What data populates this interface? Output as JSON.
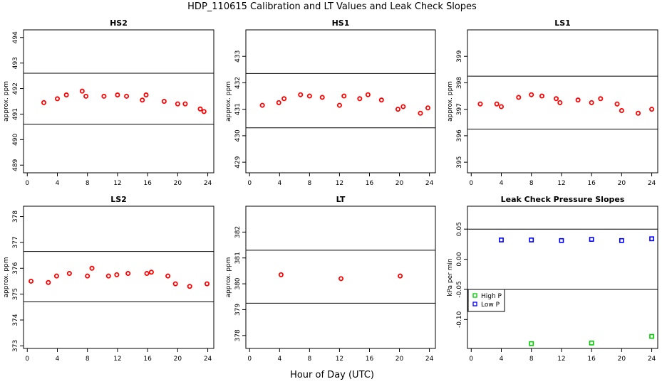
{
  "figure": {
    "title": "HDP_110615  Calibration and LT Values and Leak Check Slopes",
    "xlabel": "Hour of Day (UTC)"
  },
  "colors": {
    "cal_points": "#ff0000",
    "high_p": "#00cc00",
    "low_p": "#0000ff",
    "lines": "#000000"
  },
  "chart_data": [
    {
      "type": "scatter",
      "title": "HS2",
      "ylabel": "approx. ppm",
      "xlim": [
        -0.5,
        24.8
      ],
      "ylim": [
        488.7,
        494.3
      ],
      "xticks": [
        0,
        4,
        8,
        12,
        16,
        20,
        24
      ],
      "yticks": [
        489,
        490,
        491,
        492,
        493,
        494
      ],
      "hlines": [
        492.6,
        490.6
      ],
      "series": [
        {
          "color": "#ff0000",
          "x": [
            2.2,
            4,
            5.2,
            7.3,
            7.8,
            10.2,
            12,
            13.2,
            15.3,
            15.8,
            18.2,
            20,
            21,
            23,
            23.5
          ],
          "y": [
            491.45,
            491.6,
            491.75,
            491.9,
            491.7,
            491.7,
            491.75,
            491.7,
            491.55,
            491.75,
            491.5,
            491.4,
            491.4,
            491.2,
            491.1
          ]
        }
      ]
    },
    {
      "type": "scatter",
      "title": "HS1",
      "ylabel": "approx. ppm",
      "xlim": [
        -0.5,
        24.8
      ],
      "ylim": [
        428.6,
        434.0
      ],
      "xticks": [
        0,
        4,
        8,
        12,
        16,
        20,
        24
      ],
      "yticks": [
        429,
        430,
        431,
        432,
        433
      ],
      "hlines": [
        432.35,
        430.3
      ],
      "series": [
        {
          "color": "#ff0000",
          "x": [
            1.7,
            3.9,
            4.6,
            6.8,
            8,
            9.7,
            12,
            12.6,
            14.7,
            15.8,
            17.6,
            19.8,
            20.5,
            22.8,
            23.8
          ],
          "y": [
            431.15,
            431.25,
            431.4,
            431.55,
            431.5,
            431.45,
            431.15,
            431.5,
            431.4,
            431.55,
            431.35,
            431.0,
            431.1,
            430.85,
            431.05
          ]
        }
      ]
    },
    {
      "type": "scatter",
      "title": "LS1",
      "ylabel": "approx. ppm",
      "xlim": [
        -0.5,
        24.8
      ],
      "ylim": [
        394.6,
        400.0
      ],
      "xticks": [
        0,
        4,
        8,
        12,
        16,
        20,
        24
      ],
      "yticks": [
        395,
        396,
        397,
        398,
        399
      ],
      "hlines": [
        398.25,
        396.25
      ],
      "series": [
        {
          "color": "#ff0000",
          "x": [
            1.2,
            3.4,
            4,
            6.3,
            8,
            9.4,
            11.3,
            11.8,
            14.2,
            16,
            17.2,
            19.4,
            20,
            22.2,
            24
          ],
          "y": [
            397.2,
            397.2,
            397.1,
            397.45,
            397.55,
            397.5,
            397.4,
            397.25,
            397.35,
            397.25,
            397.4,
            397.2,
            396.95,
            396.85,
            397.0
          ]
        }
      ]
    },
    {
      "type": "scatter",
      "title": "LS2",
      "ylabel": "approx. ppm",
      "xlim": [
        -0.5,
        24.8
      ],
      "ylim": [
        372.9,
        378.4
      ],
      "xticks": [
        0,
        4,
        8,
        12,
        16,
        20,
        24
      ],
      "yticks": [
        373,
        374,
        375,
        376,
        377,
        378
      ],
      "hlines": [
        376.65,
        374.7
      ],
      "series": [
        {
          "color": "#ff0000",
          "x": [
            0.5,
            2.8,
            3.9,
            5.6,
            8,
            8.6,
            10.8,
            11.9,
            13.4,
            15.9,
            16.5,
            18.7,
            19.7,
            21.6,
            23.9
          ],
          "y": [
            375.5,
            375.45,
            375.7,
            375.8,
            375.7,
            376.0,
            375.7,
            375.75,
            375.8,
            375.8,
            375.85,
            375.7,
            375.4,
            375.3,
            375.4
          ]
        }
      ]
    },
    {
      "type": "scatter",
      "title": "LT",
      "ylabel": "approx. ppm",
      "xlim": [
        -0.5,
        24.8
      ],
      "ylim": [
        377.5,
        383.0
      ],
      "xticks": [
        0,
        4,
        8,
        12,
        16,
        20,
        24
      ],
      "yticks": [
        378,
        379,
        380,
        381,
        382
      ],
      "hlines": [
        381.3,
        379.25
      ],
      "series": [
        {
          "color": "#ff0000",
          "x": [
            4.2,
            12.2,
            20.1
          ],
          "y": [
            380.35,
            380.2,
            380.3
          ]
        }
      ]
    },
    {
      "type": "scatter",
      "title": "Leak Check Pressure Slopes",
      "ylabel": "kPa per min",
      "xlim": [
        -0.5,
        24.8
      ],
      "ylim": [
        -0.148,
        0.088
      ],
      "xticks": [
        0,
        4,
        8,
        12,
        16,
        20,
        24
      ],
      "yticks": [
        -0.1,
        -0.05,
        0.0,
        0.05
      ],
      "ytick_labels": [
        "-0.10",
        "-0.05",
        "0.00",
        "0.05"
      ],
      "hlines": [
        0.05,
        -0.05
      ],
      "legend": {
        "position": "left",
        "entries": [
          "High P",
          "Low P"
        ]
      },
      "series": [
        {
          "name": "High P",
          "color": "#00cc00",
          "x": [
            8,
            16,
            24
          ],
          "y": [
            -0.14,
            -0.139,
            -0.128
          ]
        },
        {
          "name": "Low P",
          "color": "#0000ff",
          "x": [
            4,
            8,
            12,
            16,
            20,
            24
          ],
          "y": [
            0.032,
            0.032,
            0.031,
            0.033,
            0.031,
            0.034
          ]
        }
      ]
    }
  ]
}
